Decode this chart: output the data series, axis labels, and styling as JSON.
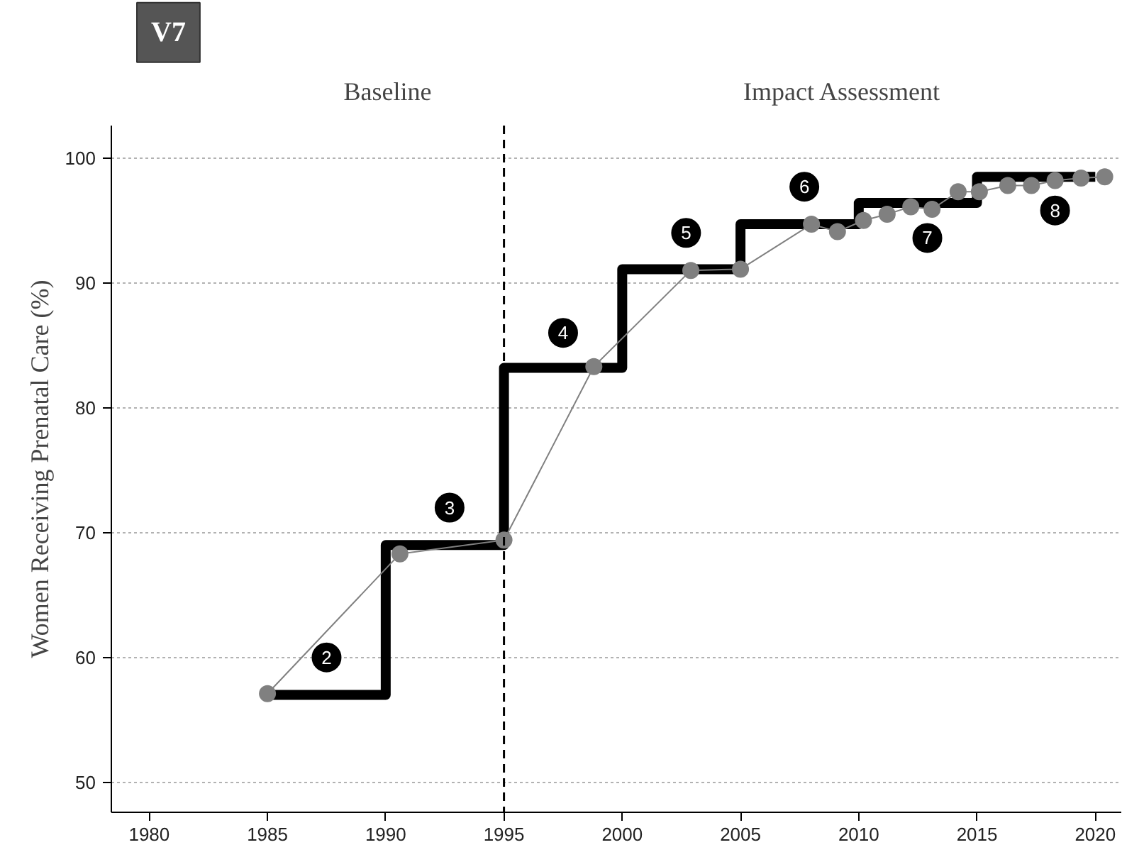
{
  "chart_data": {
    "type": "step",
    "title": "V7",
    "ylabel": "Women Receiving Prenatal Care (%)",
    "xlim": [
      1978.4,
      2021.1
    ],
    "ylim": [
      47.6,
      102.6
    ],
    "xticks": [
      1980,
      1985,
      1990,
      1995,
      2000,
      2005,
      2010,
      2015,
      2020
    ],
    "yticks": [
      50,
      60,
      70,
      80,
      90,
      100
    ],
    "grid": "y",
    "series": [
      {
        "color": "#000000",
        "x": [
          1985,
          1990,
          1995,
          2000,
          2005,
          2010,
          2015,
          2020
        ],
        "values": [
          57.0,
          69.0,
          83.2,
          91.1,
          94.7,
          96.4,
          98.5,
          98.5
        ]
      },
      {
        "type": "line",
        "marker": "circle",
        "color": "#808080",
        "x": [
          1985,
          1990.6,
          1995,
          1998.8,
          2002.9,
          2005,
          2008,
          2009.1,
          2010.2,
          2011.2,
          2012.2,
          2013.1,
          2014.2,
          2015.1,
          2016.3,
          2017.3,
          2018.3,
          2019.4,
          2020.4
        ],
        "values": [
          57.1,
          68.3,
          69.4,
          83.3,
          91.0,
          91.1,
          94.7,
          94.1,
          95.0,
          95.5,
          96.1,
          95.9,
          97.3,
          97.3,
          97.8,
          97.8,
          98.2,
          98.4,
          98.5
        ]
      }
    ],
    "ref_lines": [
      {
        "axis": "x",
        "value": 1995,
        "line_style": "dashed",
        "color": "#000000"
      }
    ],
    "annotations": [
      "Baseline",
      "Impact Assessment",
      {
        "text": "2",
        "x": 1987.5,
        "y": 60.0
      },
      {
        "text": "3",
        "x": 1992.7,
        "y": 72.0
      },
      {
        "text": "4",
        "x": 1997.5,
        "y": 86.0
      },
      {
        "text": "5",
        "x": 2002.7,
        "y": 94.0
      },
      {
        "text": "6",
        "x": 2007.7,
        "y": 97.7
      },
      {
        "text": "7",
        "x": 2012.9,
        "y": 93.6
      },
      {
        "text": "8",
        "x": 2018.3,
        "y": 95.8
      }
    ]
  }
}
